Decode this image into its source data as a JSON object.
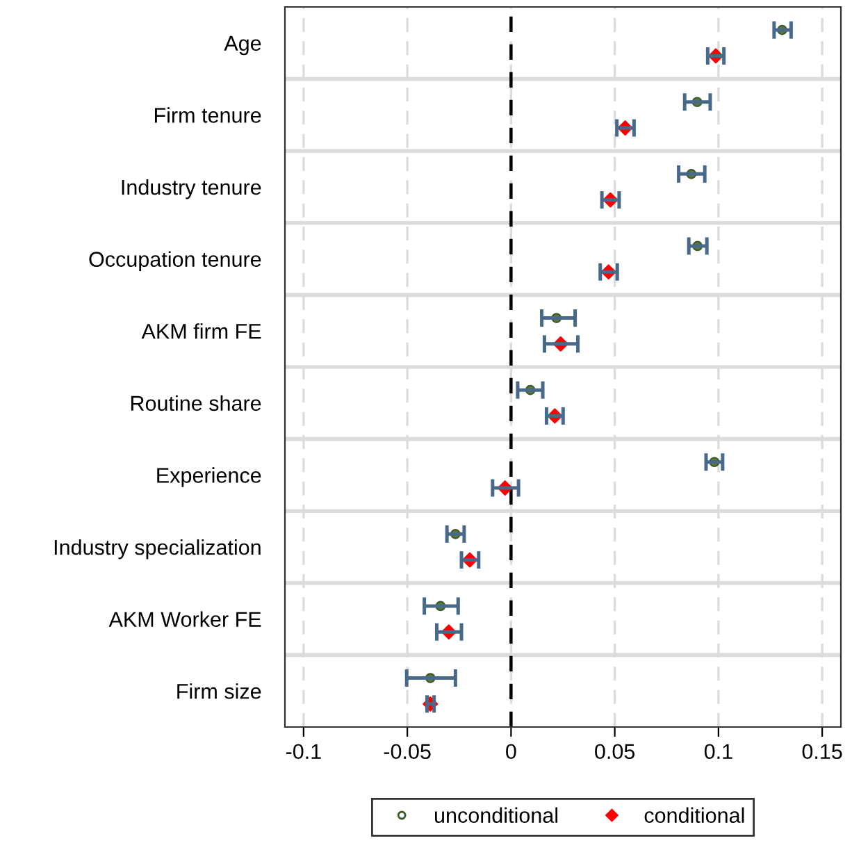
{
  "chart_data": {
    "type": "scatter",
    "orientation": "horizontal",
    "categories": [
      "Age",
      "Firm tenure",
      "Industry tenure",
      "Occupation tenure",
      "AKM firm FE",
      "Routine share",
      "Experience",
      "Industry specialization",
      "AKM Worker FE",
      "Firm size"
    ],
    "series": [
      {
        "name": "unconditional",
        "color": "#5b7a3a",
        "marker": "circle",
        "values": [
          0.1307,
          0.0897,
          0.0869,
          0.0899,
          0.0219,
          0.0093,
          0.098,
          -0.0268,
          -0.034,
          -0.0389
        ],
        "errors": [
          [
            0.1268,
            0.135
          ],
          [
            0.0837,
            0.096
          ],
          [
            0.0808,
            0.0934
          ],
          [
            0.0857,
            0.0944
          ],
          [
            0.0148,
            0.0309
          ],
          [
            0.0032,
            0.0153
          ],
          [
            0.094,
            0.102
          ],
          [
            -0.0309,
            -0.0226
          ],
          [
            -0.0418,
            -0.0255
          ],
          [
            -0.0503,
            -0.0268
          ]
        ]
      },
      {
        "name": "conditional",
        "color": "#ff0000",
        "marker": "diamond",
        "values": [
          0.0987,
          0.055,
          0.0479,
          0.047,
          0.0239,
          0.0211,
          -0.0029,
          -0.0199,
          -0.03,
          -0.0389
        ],
        "errors": [
          [
            0.0948,
            0.1026
          ],
          [
            0.051,
            0.0593
          ],
          [
            0.0438,
            0.0521
          ],
          [
            0.043,
            0.0512
          ],
          [
            0.0161,
            0.0322
          ],
          [
            0.0171,
            0.0251
          ],
          [
            -0.0089,
            0.0036
          ],
          [
            -0.0239,
            -0.0156
          ],
          [
            -0.0358,
            -0.0239
          ],
          [
            -0.0405,
            -0.0371
          ]
        ]
      }
    ],
    "xlim": [
      -0.109,
      0.159
    ],
    "xticks": [
      -0.1,
      -0.05,
      0,
      0.05,
      0.1,
      0.15
    ],
    "ref_lines": [
      {
        "axis": "x",
        "value": 0,
        "color": "#000000",
        "line_style": "dashed"
      }
    ],
    "grid": true,
    "legend": "bottom"
  }
}
